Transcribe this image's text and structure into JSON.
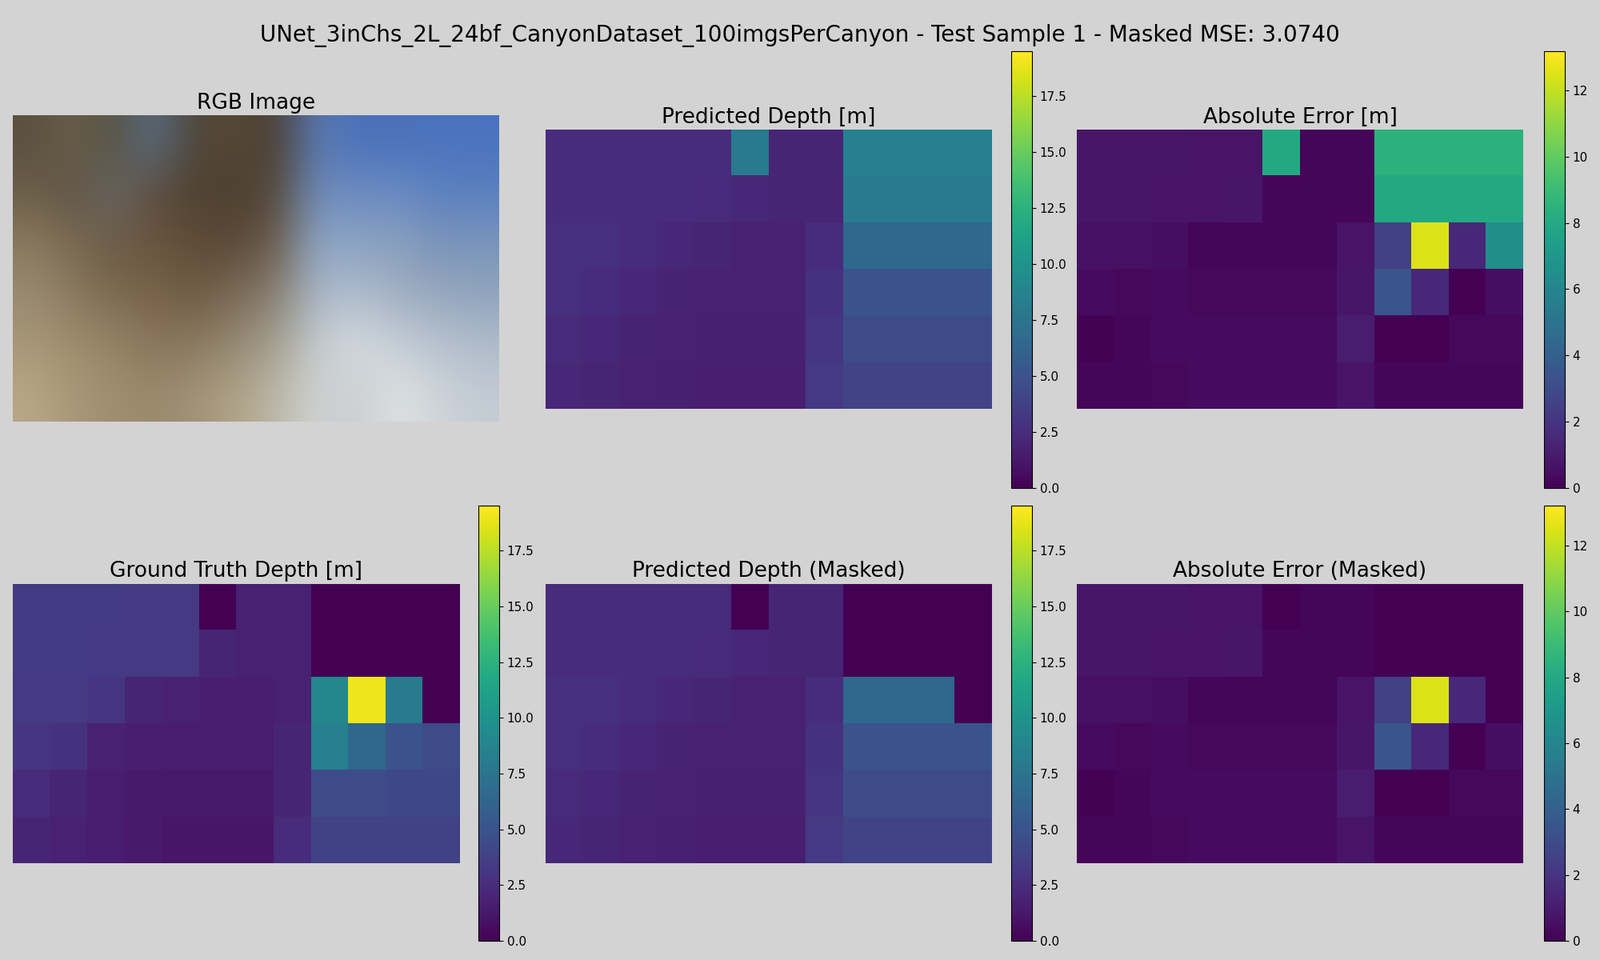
{
  "chart_data": {
    "type": "heatmap",
    "title": "UNet_3inChs_2L_24bf_CanyonDataset_100imgsPerCanyon - Test Sample 1 - Masked MSE: 3.0740",
    "panels": [
      {
        "type": "image",
        "title": "RGB Image",
        "tick_labels": false,
        "colors": [
          [
            "#5a5040",
            "#6a604c",
            "#55503f",
            "#5a6f8a",
            "#4e4434",
            "#5a4a38",
            "#4a3e30",
            "#5a7bb5",
            "#4a6fb8",
            "#4a70ba",
            "#4a72bd",
            "#4a72be"
          ],
          [
            "#6b5e48",
            "#5e5242",
            "#6a6a6a",
            "#5c4c3a",
            "#4f4232",
            "#4b3d2f",
            "#55493a",
            "#6f8cb8",
            "#6a8ac0",
            "#6a8cc4",
            "#5c80c0",
            "#5a80c2"
          ],
          [
            "#8a7a60",
            "#7a6a52",
            "#6a5a44",
            "#6a5440",
            "#5e4a36",
            "#5a4836",
            "#6a5c4c",
            "#90a8c8",
            "#8aa2c2",
            "#8aa0bc",
            "#7a94b8",
            "#7a94ba"
          ],
          [
            "#9a8a70",
            "#8a7a60",
            "#7a684e",
            "#7a644a",
            "#6e5a44",
            "#7a6a56",
            "#8a8070",
            "#a8b8c8",
            "#b0bccc",
            "#a0aec0",
            "#96a6bc",
            "#90a4bc"
          ],
          [
            "#a89878",
            "#a08c6c",
            "#98866a",
            "#8a7458",
            "#8a7a62",
            "#968a74",
            "#a4a090",
            "#c8ccd0",
            "#d8dde0",
            "#c8d0d8",
            "#b8c4d0",
            "#b0bccc"
          ],
          [
            "#b8a888",
            "#a89878",
            "#a08e70",
            "#9a8a6c",
            "#a49478",
            "#b0a488",
            "#bcb8a8",
            "#d0d4d4",
            "#c8ccd0",
            "#e0e4e4",
            "#d0d4d8",
            "#c4ccd4"
          ]
        ]
      },
      {
        "type": "heatmap",
        "title": "Predicted Depth [m]",
        "tick_labels": false,
        "colorbar_range": [
          0,
          19.5
        ],
        "colorbar_ticks": [
          {
            "value": 0,
            "label": "0.0"
          },
          2.5,
          {
            "value": 5,
            "label": "5.0"
          },
          7.5,
          {
            "value": 10,
            "label": "10.0"
          },
          12.5,
          {
            "value": 15,
            "label": "15.0"
          },
          17.5
        ],
        "cells": [
          [
            2.5,
            2.5,
            2.5,
            2.5,
            2.5,
            8.0,
            2.0,
            2.0,
            8.5,
            8.5,
            8.5,
            8.5
          ],
          [
            2.5,
            2.5,
            2.5,
            2.5,
            2.4,
            2.2,
            2.0,
            2.0,
            8.0,
            8.0,
            8.0,
            8.0
          ],
          [
            2.6,
            2.6,
            2.5,
            2.2,
            2.0,
            1.8,
            1.8,
            2.5,
            6.5,
            6.5,
            6.5,
            6.5
          ],
          [
            2.6,
            2.5,
            2.2,
            1.9,
            1.8,
            1.8,
            1.8,
            2.8,
            5.0,
            5.0,
            5.0,
            5.0
          ],
          [
            2.4,
            2.2,
            1.9,
            1.8,
            1.7,
            1.7,
            1.7,
            3.0,
            4.5,
            4.5,
            4.5,
            4.5
          ],
          [
            2.2,
            2.0,
            1.8,
            1.7,
            1.6,
            1.6,
            1.6,
            3.2,
            4.0,
            4.0,
            4.0,
            4.0
          ]
        ]
      },
      {
        "type": "heatmap",
        "title": "Absolute Error [m]",
        "tick_labels": false,
        "colorbar_range": [
          0,
          13.2
        ],
        "colorbar_ticks": [
          0,
          2,
          4,
          6,
          8,
          10,
          12
        ],
        "cells": [
          [
            0.8,
            0.8,
            0.8,
            0.7,
            0.7,
            8.0,
            0.2,
            0.2,
            8.5,
            8.5,
            8.5,
            8.5
          ],
          [
            0.8,
            0.8,
            0.7,
            0.7,
            0.8,
            0.2,
            0.2,
            0.2,
            8.0,
            8.0,
            8.0,
            8.0
          ],
          [
            0.6,
            0.6,
            0.5,
            0.2,
            0.2,
            0.2,
            0.2,
            0.7,
            2.5,
            12.5,
            1.5,
            6.5
          ],
          [
            0.4,
            0.3,
            0.4,
            0.3,
            0.3,
            0.3,
            0.3,
            0.8,
            3.5,
            1.5,
            0.0,
            0.5
          ],
          [
            0.1,
            0.2,
            0.4,
            0.4,
            0.4,
            0.4,
            0.4,
            1.0,
            0.0,
            0.0,
            0.3,
            0.3
          ],
          [
            0.2,
            0.2,
            0.3,
            0.4,
            0.4,
            0.4,
            0.4,
            0.7,
            0.2,
            0.2,
            0.2,
            0.2
          ]
        ]
      },
      {
        "type": "heatmap",
        "title": "Ground Truth Depth [m]",
        "tick_labels": false,
        "colorbar_range": [
          0,
          19.5
        ],
        "colorbar_ticks": [
          {
            "value": 0,
            "label": "0.0"
          },
          2.5,
          {
            "value": 5,
            "label": "5.0"
          },
          7.5,
          {
            "value": 10,
            "label": "10.0"
          },
          12.5,
          {
            "value": 15,
            "label": "15.0"
          },
          17.5
        ],
        "cells": [
          [
            3.3,
            3.3,
            3.3,
            3.2,
            3.2,
            0,
            1.8,
            1.8,
            0,
            0,
            0,
            0
          ],
          [
            3.3,
            3.3,
            3.2,
            3.2,
            3.2,
            2.0,
            1.8,
            1.8,
            0,
            0,
            0,
            0
          ],
          [
            3.2,
            3.2,
            3.0,
            2.0,
            1.8,
            1.6,
            1.6,
            1.8,
            9.0,
            19.0,
            8.0,
            0
          ],
          [
            3.0,
            2.8,
            1.8,
            1.6,
            1.5,
            1.5,
            1.5,
            2.0,
            8.5,
            6.5,
            5.0,
            4.5
          ],
          [
            2.5,
            2.0,
            1.5,
            1.4,
            1.3,
            1.3,
            1.3,
            2.0,
            4.5,
            4.5,
            4.2,
            4.2
          ],
          [
            2.0,
            1.8,
            1.5,
            1.3,
            1.2,
            1.2,
            1.2,
            2.5,
            3.8,
            3.8,
            3.8,
            3.8
          ]
        ]
      },
      {
        "type": "heatmap",
        "title": "Predicted Depth (Masked)",
        "tick_labels": false,
        "colorbar_range": [
          0,
          19.5
        ],
        "colorbar_ticks": [
          {
            "value": 0,
            "label": "0.0"
          },
          2.5,
          {
            "value": 5,
            "label": "5.0"
          },
          7.5,
          {
            "value": 10,
            "label": "10.0"
          },
          12.5,
          {
            "value": 15,
            "label": "15.0"
          },
          17.5
        ],
        "cells": [
          [
            2.5,
            2.5,
            2.5,
            2.5,
            2.5,
            0,
            2.0,
            2.0,
            0,
            0,
            0,
            0
          ],
          [
            2.5,
            2.5,
            2.5,
            2.5,
            2.4,
            2.2,
            2.0,
            2.0,
            0,
            0,
            0,
            0
          ],
          [
            2.6,
            2.6,
            2.5,
            2.2,
            2.0,
            1.8,
            1.8,
            2.5,
            6.5,
            6.5,
            6.5,
            0
          ],
          [
            2.6,
            2.5,
            2.2,
            1.9,
            1.8,
            1.8,
            1.8,
            2.8,
            5.0,
            5.0,
            5.0,
            5.0
          ],
          [
            2.4,
            2.2,
            1.9,
            1.8,
            1.7,
            1.7,
            1.7,
            3.0,
            4.5,
            4.5,
            4.5,
            4.5
          ],
          [
            2.2,
            2.0,
            1.8,
            1.7,
            1.6,
            1.6,
            1.6,
            3.2,
            4.0,
            4.0,
            4.0,
            4.0
          ]
        ]
      },
      {
        "type": "heatmap",
        "title": "Absolute Error (Masked)",
        "tick_labels": false,
        "colorbar_range": [
          0,
          13.2
        ],
        "colorbar_ticks": [
          0,
          2,
          4,
          6,
          8,
          10,
          12
        ],
        "cells": [
          [
            0.8,
            0.8,
            0.8,
            0.7,
            0.7,
            0,
            0.2,
            0.2,
            0,
            0,
            0,
            0
          ],
          [
            0.8,
            0.8,
            0.7,
            0.7,
            0.8,
            0.2,
            0.2,
            0.2,
            0,
            0,
            0,
            0
          ],
          [
            0.6,
            0.6,
            0.5,
            0.2,
            0.2,
            0.2,
            0.2,
            0.7,
            2.5,
            12.5,
            1.5,
            0
          ],
          [
            0.4,
            0.3,
            0.4,
            0.3,
            0.3,
            0.3,
            0.3,
            0.8,
            3.5,
            1.5,
            0.0,
            0.5
          ],
          [
            0.1,
            0.2,
            0.4,
            0.4,
            0.4,
            0.4,
            0.4,
            1.0,
            0.0,
            0.0,
            0.3,
            0.3
          ],
          [
            0.2,
            0.2,
            0.3,
            0.4,
            0.4,
            0.4,
            0.4,
            0.7,
            0.2,
            0.2,
            0.2,
            0.2
          ]
        ]
      }
    ]
  }
}
